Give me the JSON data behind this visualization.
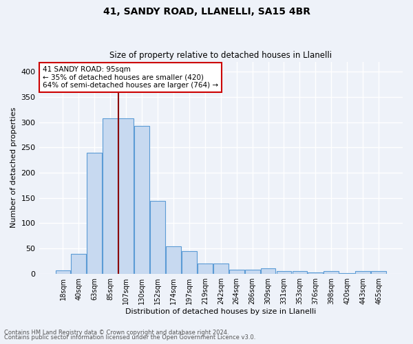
{
  "title1": "41, SANDY ROAD, LLANELLI, SA15 4BR",
  "title2": "Size of property relative to detached houses in Llanelli",
  "xlabel": "Distribution of detached houses by size in Llanelli",
  "ylabel": "Number of detached properties",
  "bar_labels": [
    "18sqm",
    "40sqm",
    "63sqm",
    "85sqm",
    "107sqm",
    "130sqm",
    "152sqm",
    "174sqm",
    "197sqm",
    "219sqm",
    "242sqm",
    "264sqm",
    "286sqm",
    "309sqm",
    "331sqm",
    "353sqm",
    "376sqm",
    "398sqm",
    "420sqm",
    "443sqm",
    "465sqm"
  ],
  "bar_values": [
    7,
    39,
    240,
    308,
    308,
    292,
    144,
    54,
    45,
    20,
    20,
    8,
    8,
    11,
    5,
    5,
    3,
    5,
    1,
    5,
    5
  ],
  "bar_color": "#c7d9f0",
  "bar_edge_color": "#5b9bd5",
  "annotation_line1": "41 SANDY ROAD: 95sqm",
  "annotation_line2": "← 35% of detached houses are smaller (420)",
  "annotation_line3": "64% of semi-detached houses are larger (764) →",
  "vline_color": "#8b0000",
  "annotation_box_color": "#ffffff",
  "annotation_box_edge": "#cc0000",
  "ylim": [
    0,
    420
  ],
  "yticks": [
    0,
    50,
    100,
    150,
    200,
    250,
    300,
    350,
    400
  ],
  "footer1": "Contains HM Land Registry data © Crown copyright and database right 2024.",
  "footer2": "Contains public sector information licensed under the Open Government Licence v3.0.",
  "bg_color": "#eef2f9",
  "grid_color": "#ffffff"
}
